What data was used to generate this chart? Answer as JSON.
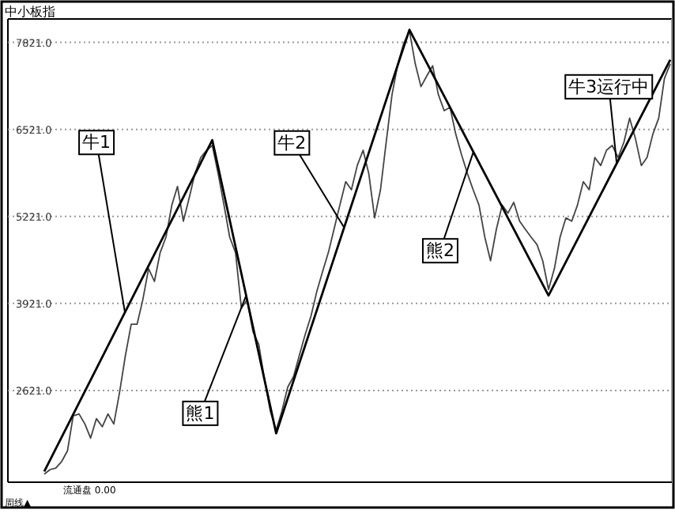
{
  "chart_data": {
    "type": "line",
    "title": "中小板指",
    "ylim": [
      1250,
      8170
    ],
    "categories": [
      null,
      null,
      null,
      null,
      null,
      null,
      null,
      null,
      null,
      null,
      null,
      null,
      null,
      null,
      null,
      null,
      null,
      null,
      null,
      null,
      null,
      null,
      null,
      null,
      null,
      null,
      null,
      null,
      null,
      null,
      null,
      null,
      null,
      null,
      null,
      null,
      null,
      null,
      null,
      null,
      null,
      null,
      null,
      null,
      null,
      null,
      null,
      null,
      null,
      null,
      null,
      null,
      null,
      null,
      null,
      null,
      null,
      null,
      null,
      null,
      null,
      null,
      null,
      null,
      null,
      null,
      null,
      null,
      null,
      null,
      null,
      null,
      null,
      null,
      null,
      null,
      null,
      null,
      null,
      null,
      null,
      null,
      null,
      null,
      null,
      null,
      null,
      null,
      null,
      null,
      null,
      null,
      null,
      null,
      null,
      null,
      null,
      null,
      null,
      null,
      null,
      null,
      null,
      null,
      null,
      null,
      null,
      null,
      null
    ],
    "yticks": [
      {
        "value": 2621,
        "label": "2621.0"
      },
      {
        "value": 3921,
        "label": "3921.0"
      },
      {
        "value": 5221,
        "label": "5221.0"
      },
      {
        "value": 6521,
        "label": "6521.0"
      },
      {
        "value": 7821,
        "label": "7821.0"
      }
    ],
    "tick_labels": "y",
    "grid": "y",
    "series": [
      {
        "color": "#444444",
        "values": [
          1370,
          1440,
          1460,
          1560,
          1720,
          2240,
          2270,
          2120,
          1910,
          2200,
          2080,
          2270,
          2120,
          2600,
          3140,
          3610,
          3610,
          3970,
          4440,
          4250,
          4680,
          4910,
          5390,
          5670,
          5150,
          5500,
          5860,
          6100,
          6210,
          6280,
          5860,
          5390,
          4910,
          4680,
          3850,
          3970,
          3500,
          3310,
          2790,
          2310,
          2030,
          2310,
          2670,
          2830,
          3140,
          3450,
          3730,
          4090,
          4390,
          4680,
          5030,
          5390,
          5740,
          5620,
          5980,
          6210,
          5860,
          5200,
          5620,
          6330,
          7040,
          7500,
          7800,
          7990,
          7500,
          7160,
          7320,
          7470,
          7040,
          6800,
          6850,
          6450,
          6140,
          5860,
          5620,
          5390,
          4910,
          4560,
          5030,
          5390,
          5270,
          5430,
          5150,
          5030,
          4910,
          4800,
          4560,
          4130,
          4440,
          4910,
          5200,
          5150,
          5390,
          5740,
          5620,
          6100,
          5980,
          6210,
          6280,
          6100,
          6330,
          6690,
          6380,
          5980,
          6100,
          6450,
          6690,
          7280,
          7500
        ]
      },
      {
        "color": "#000000",
        "values": [
          1410,
          null,
          null,
          null,
          null,
          null,
          null,
          null,
          null,
          null,
          null,
          null,
          null,
          null,
          null,
          null,
          null,
          null,
          null,
          null,
          null,
          null,
          null,
          null,
          null,
          null,
          null,
          null,
          null,
          6360,
          null,
          null,
          null,
          null,
          null,
          null,
          null,
          null,
          null,
          null,
          1980,
          null,
          null,
          null,
          null,
          null,
          null,
          null,
          null,
          null,
          null,
          null,
          null,
          null,
          null,
          null,
          null,
          null,
          null,
          null,
          null,
          null,
          null,
          8010,
          null,
          null,
          null,
          null,
          null,
          null,
          null,
          null,
          null,
          null,
          null,
          null,
          null,
          null,
          null,
          null,
          null,
          null,
          null,
          null,
          null,
          null,
          null,
          4040,
          null,
          null,
          null,
          null,
          null,
          null,
          null,
          null,
          null,
          null,
          null,
          null,
          null,
          null,
          null,
          null,
          null,
          null,
          null,
          null,
          7560
        ]
      }
    ],
    "annotations": [
      "牛1",
      "熊1",
      "牛2",
      "熊2",
      "牛3运行中",
      "流通盘 0.00",
      "周线▲"
    ]
  }
}
